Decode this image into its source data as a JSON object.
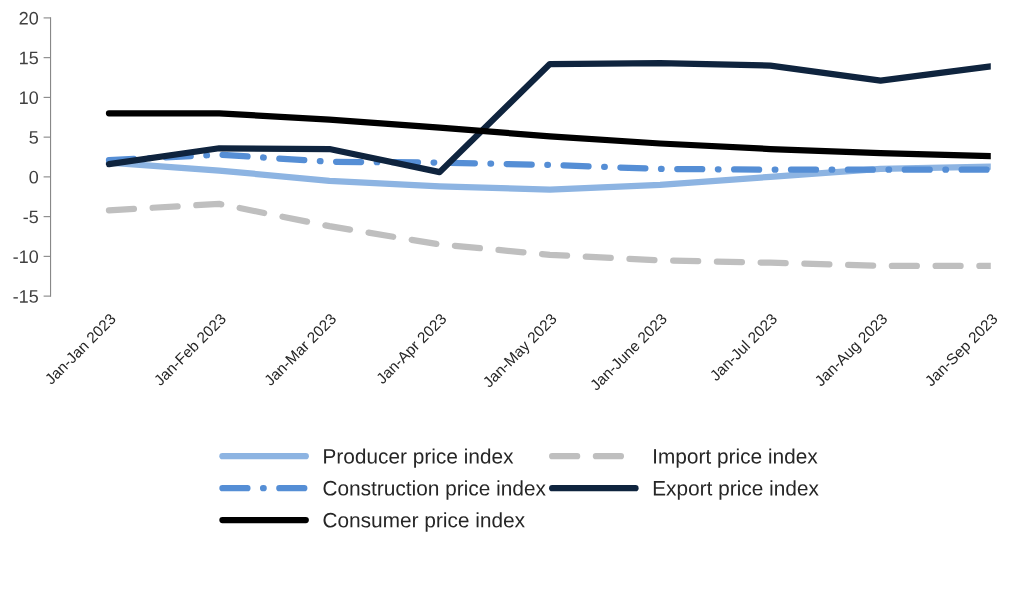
{
  "chart_data": {
    "type": "line",
    "categories": [
      "Jan-Jan 2023",
      "Jan-Feb 2023",
      "Jan-Mar 2023",
      "Jan-Apr 2023",
      "Jan-May 2023",
      "Jan-June 2023",
      "Jan-Jul 2023",
      "Jan-Aug 2023",
      "Jan-Sep 2023"
    ],
    "series": [
      {
        "name": "Producer price index",
        "color": "#8db4e2",
        "line_style": "solid",
        "values": [
          1.8,
          0.8,
          -0.5,
          -1.2,
          -1.6,
          -1.0,
          0.0,
          1.0,
          1.3
        ]
      },
      {
        "name": "Import price index",
        "color": "#bfbfbf",
        "line_style": "dashed",
        "values": [
          -4.2,
          -3.4,
          -6.2,
          -8.5,
          -9.8,
          -10.5,
          -10.8,
          -11.2,
          -11.2
        ]
      },
      {
        "name": "Construction price index",
        "color": "#558ed5",
        "line_style": "dashdot",
        "values": [
          2.1,
          2.8,
          1.9,
          1.8,
          1.5,
          1.0,
          0.9,
          0.9,
          0.9
        ]
      },
      {
        "name": "Export price index",
        "color": "#0f243e",
        "line_style": "solid",
        "values": [
          1.6,
          3.6,
          3.5,
          0.6,
          14.2,
          14.3,
          14.0,
          12.1,
          13.9
        ]
      },
      {
        "name": "Consumer price index",
        "color": "#000000",
        "line_style": "solid",
        "values": [
          8.0,
          8.0,
          7.2,
          6.2,
          5.1,
          4.2,
          3.5,
          3.0,
          2.6
        ]
      }
    ],
    "ylim": [
      -15,
      20
    ],
    "yticks": [
      -15,
      -10,
      -5,
      0,
      5,
      10,
      15,
      20
    ],
    "grid": false,
    "legend": "bottom",
    "marker": "none"
  }
}
